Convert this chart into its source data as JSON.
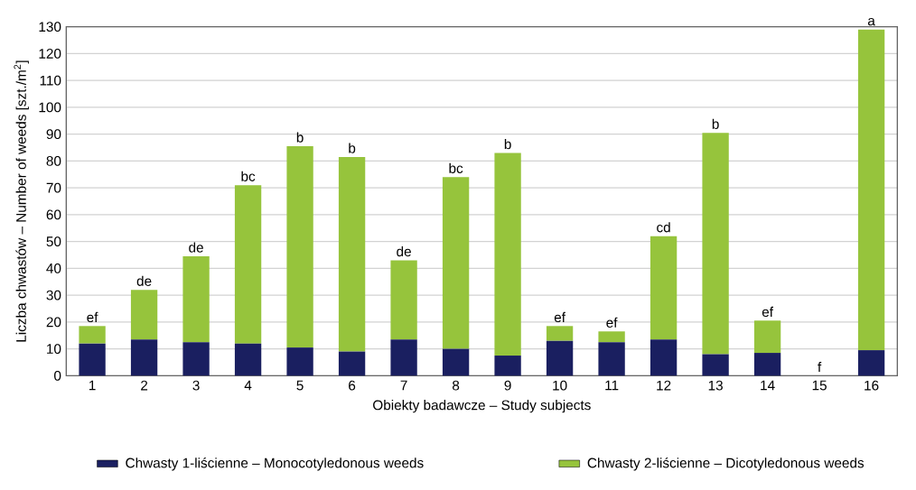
{
  "chart_data": {
    "type": "bar",
    "stacked": true,
    "xlabel": "Obiekty badawcze – Study subjects",
    "ylabel": "Liczba chwastów – Number of weeds [szt./m$^{2}$]",
    "categories": [
      "1",
      "2",
      "3",
      "4",
      "5",
      "6",
      "7",
      "8",
      "9",
      "10",
      "11",
      "12",
      "13",
      "14",
      "15",
      "16"
    ],
    "series": [
      {
        "name": "Chwasty 1-liścienne – Monocotyledonous weeds",
        "color": "#1a1f60",
        "values": [
          12,
          13.5,
          12.5,
          12,
          10.5,
          9,
          13.5,
          10,
          7.5,
          13,
          12.5,
          13.5,
          8,
          8.5,
          0,
          9.5
        ]
      },
      {
        "name": "Chwasty 2-liścienne – Dicotyledonous weeds",
        "color": "#96c43c",
        "values": [
          6.5,
          18.5,
          32,
          59,
          75,
          72.5,
          29.5,
          64,
          75.5,
          5.5,
          4,
          38.5,
          82.5,
          12,
          0,
          119.5
        ]
      }
    ],
    "ylim": [
      0,
      130
    ],
    "yticks": [
      0,
      10,
      20,
      30,
      40,
      50,
      60,
      70,
      80,
      90,
      100,
      110,
      120,
      130
    ],
    "grid": "y",
    "legend": "bottom",
    "annotations": [
      {
        "text": "ef",
        "x": "1",
        "y": 18.5
      },
      {
        "text": "de",
        "x": "2",
        "y": 32
      },
      {
        "text": "de",
        "x": "3",
        "y": 44.5
      },
      {
        "text": "bc",
        "x": "4",
        "y": 71
      },
      {
        "text": "b",
        "x": "5",
        "y": 85.5
      },
      {
        "text": "b",
        "x": "6",
        "y": 81.5
      },
      {
        "text": "de",
        "x": "7",
        "y": 43
      },
      {
        "text": "bc",
        "x": "8",
        "y": 74
      },
      {
        "text": "b",
        "x": "9",
        "y": 83
      },
      {
        "text": "ef",
        "x": "10",
        "y": 18.5
      },
      {
        "text": "ef",
        "x": "11",
        "y": 16.5
      },
      {
        "text": "cd",
        "x": "12",
        "y": 52
      },
      {
        "text": "b",
        "x": "13",
        "y": 90.5
      },
      {
        "text": "ef",
        "x": "14",
        "y": 20.5
      },
      {
        "text": "f",
        "x": "15",
        "y": 0
      },
      {
        "text": "a",
        "x": "16",
        "y": 129
      }
    ]
  }
}
